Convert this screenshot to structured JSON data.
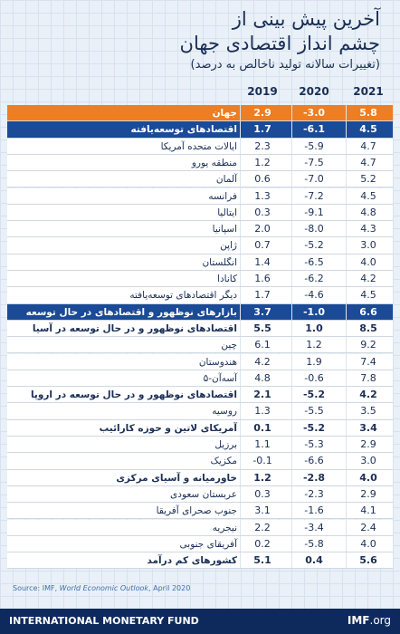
{
  "header": {
    "title_lines": [
      "آخرین پیش بینی از",
      "چشم انداز اقتصادی جهان"
    ],
    "subtitle": "(تغییرات سالانه تولید ناخالص به درصد)"
  },
  "table": {
    "columns": [
      "2019",
      "2020",
      "2021"
    ],
    "rows": [
      {
        "kind": "world",
        "cells": [
          "جهان",
          "2.9",
          "-3.0",
          "5.8"
        ]
      },
      {
        "kind": "group",
        "cells": [
          "اقتصادهای توسعه‌یافته",
          "1.7",
          "-6.1",
          "4.5"
        ]
      },
      {
        "kind": "normal",
        "cells": [
          "ایالات متحده آمریکا",
          "2.3",
          "-5.9",
          "4.7"
        ]
      },
      {
        "kind": "normal",
        "cells": [
          "منطقه یورو",
          "1.2",
          "-7.5",
          "4.7"
        ]
      },
      {
        "kind": "normal",
        "cells": [
          "آلمان",
          "0.6",
          "-7.0",
          "5.2"
        ]
      },
      {
        "kind": "normal",
        "cells": [
          "فرانسه",
          "1.3",
          "-7.2",
          "4.5"
        ]
      },
      {
        "kind": "normal",
        "cells": [
          "ایتالیا",
          "0.3",
          "-9.1",
          "4.8"
        ]
      },
      {
        "kind": "normal",
        "cells": [
          "اسپانیا",
          "2.0",
          "-8.0",
          "4.3"
        ]
      },
      {
        "kind": "normal",
        "cells": [
          "ژاپن",
          "0.7",
          "-5.2",
          "3.0"
        ]
      },
      {
        "kind": "normal",
        "cells": [
          "انگلستان",
          "1.4",
          "-6.5",
          "4.0"
        ]
      },
      {
        "kind": "normal",
        "cells": [
          "کانادا",
          "1.6",
          "-6.2",
          "4.2"
        ]
      },
      {
        "kind": "normal",
        "cells": [
          "دیگر اقتصادهای توسعه‌یافته",
          "1.7",
          "-4.6",
          "4.5"
        ]
      },
      {
        "kind": "group",
        "cells": [
          "بازارهای نوظهور و اقتصادهای در حال توسعه",
          "3.7",
          "-1.0",
          "6.6"
        ]
      },
      {
        "kind": "bold",
        "cells": [
          "اقتصادهای نوظهور و در حال توسعه در آسیا",
          "5.5",
          "1.0",
          "8.5"
        ]
      },
      {
        "kind": "normal",
        "cells": [
          "چین",
          "6.1",
          "1.2",
          "9.2"
        ]
      },
      {
        "kind": "normal",
        "cells": [
          "هندوستان",
          "4.2",
          "1.9",
          "7.4"
        ]
      },
      {
        "kind": "normal",
        "cells": [
          "آسه‌آن-۵",
          "4.8",
          "-0.6",
          "7.8"
        ]
      },
      {
        "kind": "bold",
        "cells": [
          "اقتصادهای نوظهور و در حال توسعه در اروپا",
          "2.1",
          "-5.2",
          "4.2"
        ]
      },
      {
        "kind": "normal",
        "cells": [
          "روسیه",
          "1.3",
          "-5.5",
          "3.5"
        ]
      },
      {
        "kind": "bold",
        "cells": [
          "آمریکای لاتین و حوزه کارائیب",
          "0.1",
          "-5.2",
          "3.4"
        ]
      },
      {
        "kind": "normal",
        "cells": [
          "برزیل",
          "1.1",
          "-5.3",
          "2.9"
        ]
      },
      {
        "kind": "normal",
        "cells": [
          "مکزیک",
          "-0.1",
          "-6.6",
          "3.0"
        ]
      },
      {
        "kind": "bold",
        "cells": [
          "خاورمیانه و آسیای مرکزی",
          "1.2",
          "-2.8",
          "4.0"
        ]
      },
      {
        "kind": "normal",
        "cells": [
          "عربستان سعودی",
          "0.3",
          "-2.3",
          "2.9"
        ]
      },
      {
        "kind": "normal",
        "cells": [
          "جنوب صحرای آفریقا",
          "3.1",
          "-1.6",
          "4.1"
        ]
      },
      {
        "kind": "normal",
        "cells": [
          "نیجریه",
          "2.2",
          "-3.4",
          "2.4"
        ]
      },
      {
        "kind": "normal",
        "cells": [
          "آفریقای جنوبی",
          "0.2",
          "-5.8",
          "4.0"
        ]
      },
      {
        "kind": "bold",
        "cells": [
          "کشورهای کم درآمد",
          "5.1",
          "0.4",
          "5.6"
        ]
      }
    ]
  },
  "source": {
    "prefix": "Source: IMF, ",
    "title": "World Economic Outlook",
    "suffix": ", April 2020"
  },
  "footer": {
    "name": "INTERNATIONAL MONETARY FUND",
    "brand": "IMF",
    "domain": ".org"
  }
}
